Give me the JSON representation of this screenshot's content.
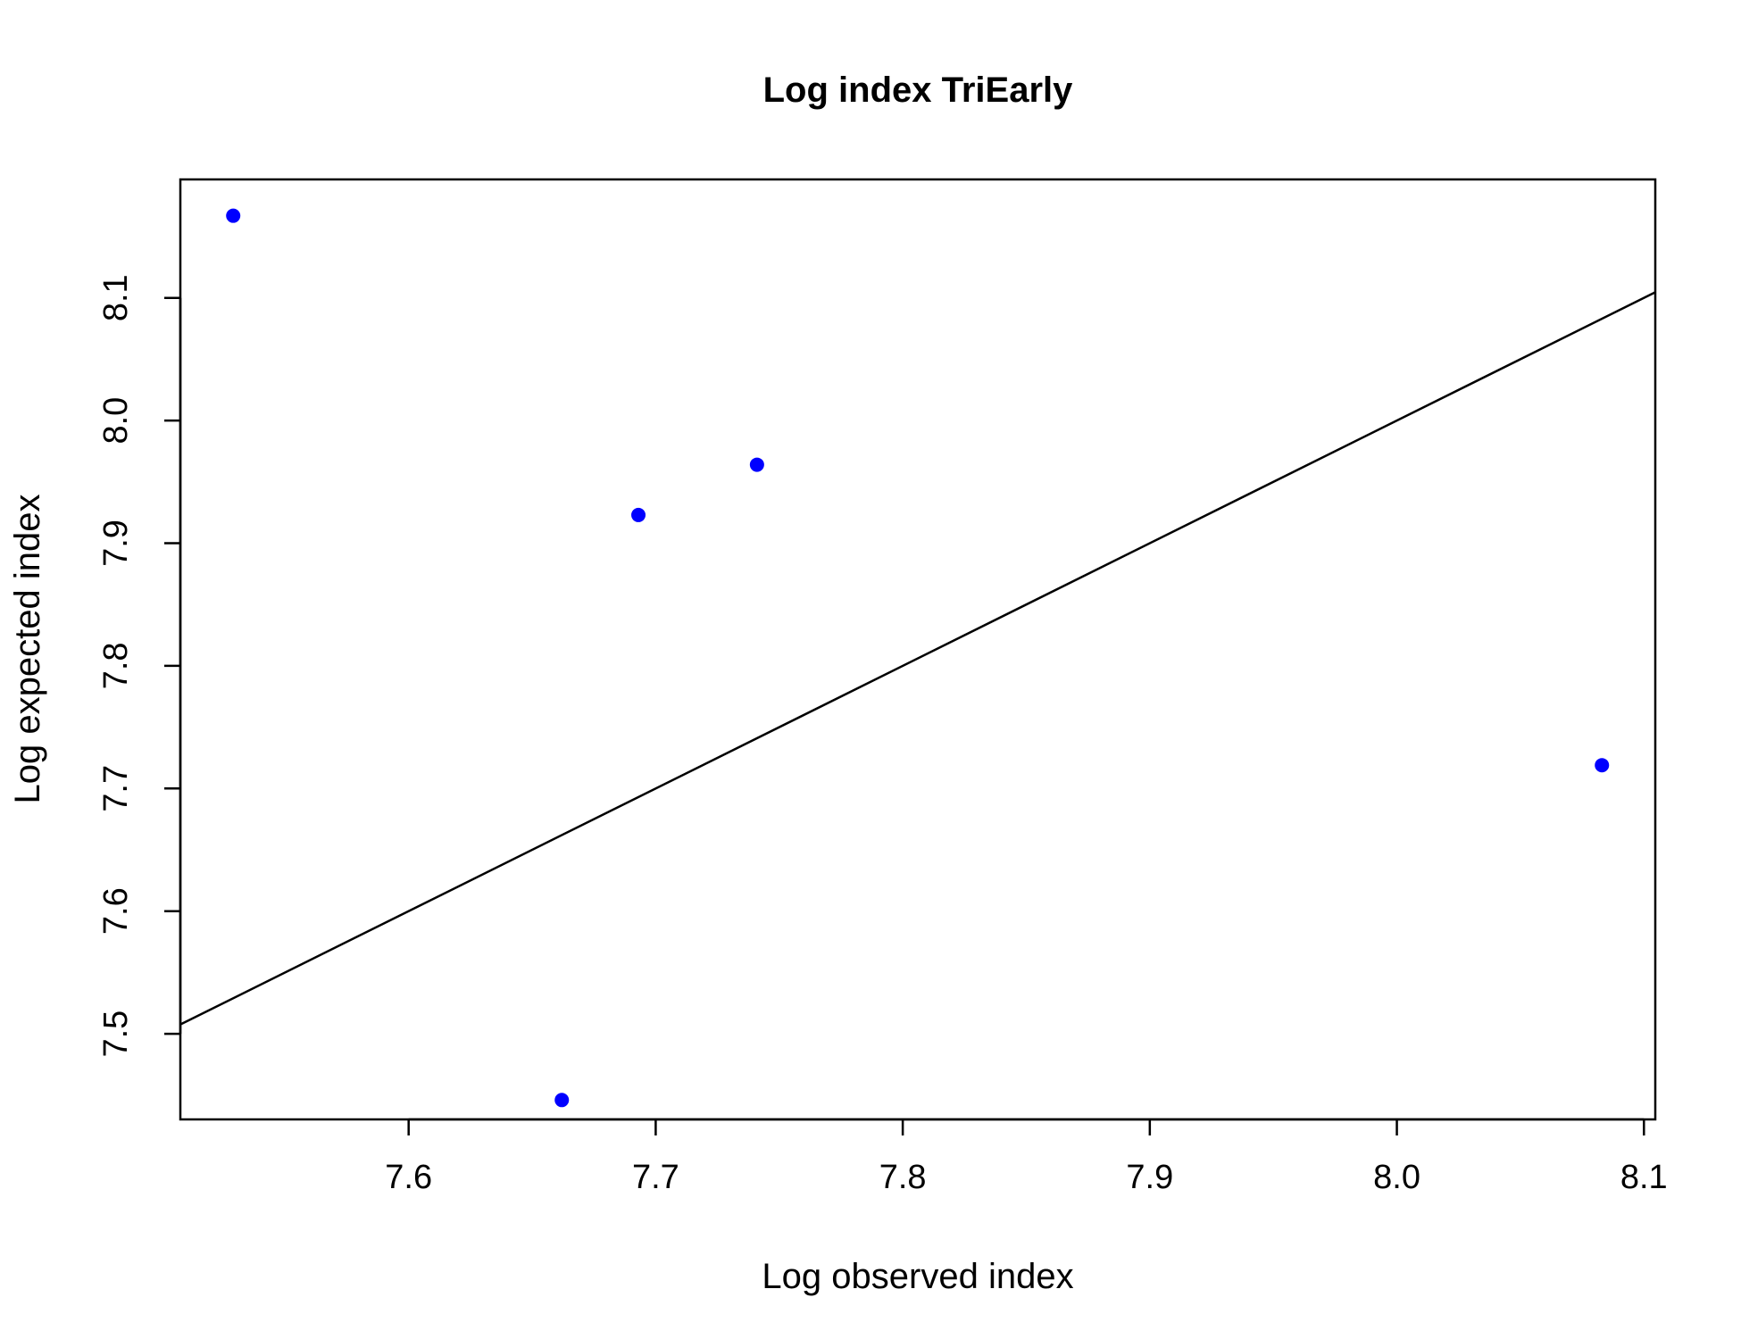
{
  "chart_data": {
    "type": "scatter",
    "title": "Log index TriEarly",
    "xlabel": "Log observed index",
    "ylabel": "Log expected index",
    "xlim": [
      7.5076,
      8.1046
    ],
    "ylim": [
      7.4302,
      8.1966
    ],
    "x_ticks": [
      7.6,
      7.7,
      7.8,
      7.9,
      8.0,
      8.1
    ],
    "x_tick_labels": [
      "7.6",
      "7.7",
      "7.8",
      "7.9",
      "8.0",
      "8.1"
    ],
    "y_ticks": [
      7.5,
      7.6,
      7.7,
      7.8,
      7.9,
      8.0,
      8.1
    ],
    "y_tick_labels": [
      "7.5",
      "7.6",
      "7.7",
      "7.8",
      "7.9",
      "8.0",
      "8.1"
    ],
    "points": [
      {
        "x": 7.529,
        "y": 8.167
      },
      {
        "x": 7.662,
        "y": 7.446
      },
      {
        "x": 7.693,
        "y": 7.923
      },
      {
        "x": 7.741,
        "y": 7.964
      },
      {
        "x": 8.083,
        "y": 7.719
      }
    ],
    "point_color": "#0000ff",
    "reference_line": {
      "type": "identity",
      "intercept": 0,
      "slope": 1,
      "color": "#000000"
    },
    "grid": false,
    "legend": "none"
  }
}
